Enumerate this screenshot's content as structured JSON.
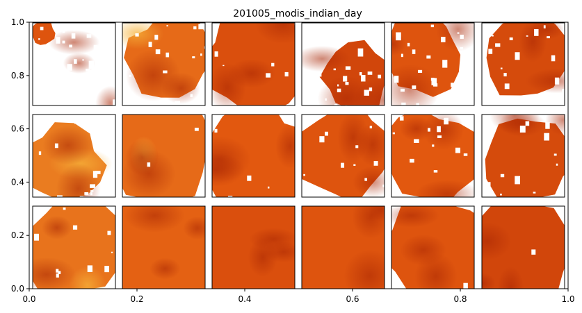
{
  "chart_data": {
    "type": "heatmap",
    "title": "201005_modis_indian_day",
    "xlabel": "",
    "ylabel": "",
    "xlim": [
      0.0,
      1.0
    ],
    "ylim": [
      0.0,
      1.0
    ],
    "xticks": [
      "0.0",
      "0.2",
      "0.4",
      "0.6",
      "0.8",
      "1.0"
    ],
    "yticks": [
      "0.0",
      "0.2",
      "0.4",
      "0.6",
      "0.8",
      "1.0"
    ],
    "grid": false,
    "colormap": "orange-red (YlOrRd-like)",
    "colors": {
      "low": "#b82c04",
      "mid": "#e2580f",
      "high": "#f6b23a",
      "missing": "#ffffff"
    },
    "panel_rows": 3,
    "panel_cols": 6,
    "panels": [
      {
        "row": 0,
        "col": 0,
        "coverage": 0.03,
        "tone": 0.45
      },
      {
        "row": 0,
        "col": 1,
        "coverage": 0.55,
        "tone": 0.6
      },
      {
        "row": 0,
        "col": 2,
        "coverage": 0.88,
        "tone": 0.4
      },
      {
        "row": 0,
        "col": 3,
        "coverage": 0.35,
        "tone": 0.3
      },
      {
        "row": 0,
        "col": 4,
        "coverage": 0.45,
        "tone": 0.45
      },
      {
        "row": 0,
        "col": 5,
        "coverage": 0.55,
        "tone": 0.35
      },
      {
        "row": 1,
        "col": 0,
        "coverage": 0.45,
        "tone": 0.7
      },
      {
        "row": 1,
        "col": 1,
        "coverage": 0.95,
        "tone": 0.6
      },
      {
        "row": 1,
        "col": 2,
        "coverage": 0.9,
        "tone": 0.5
      },
      {
        "row": 1,
        "col": 3,
        "coverage": 0.72,
        "tone": 0.45
      },
      {
        "row": 1,
        "col": 4,
        "coverage": 0.7,
        "tone": 0.5
      },
      {
        "row": 1,
        "col": 5,
        "coverage": 0.65,
        "tone": 0.35
      },
      {
        "row": 2,
        "col": 0,
        "coverage": 0.75,
        "tone": 0.65
      },
      {
        "row": 2,
        "col": 1,
        "coverage": 1.0,
        "tone": 0.55
      },
      {
        "row": 2,
        "col": 2,
        "coverage": 1.0,
        "tone": 0.4
      },
      {
        "row": 2,
        "col": 3,
        "coverage": 1.0,
        "tone": 0.45
      },
      {
        "row": 2,
        "col": 4,
        "coverage": 0.97,
        "tone": 0.45
      },
      {
        "row": 2,
        "col": 5,
        "coverage": 0.98,
        "tone": 0.3
      }
    ]
  }
}
